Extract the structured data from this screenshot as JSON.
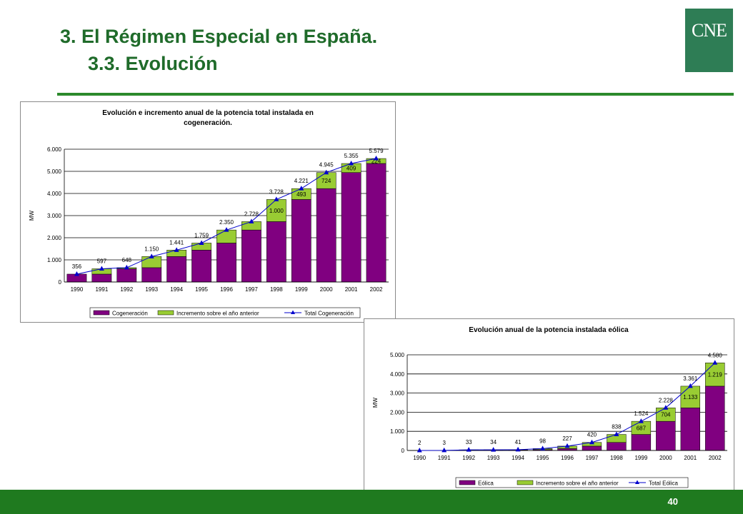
{
  "header": {
    "title": "3. El Régimen Especial en España.",
    "subtitle": "3.3. Evolución",
    "logo_text": "CNE"
  },
  "footer": {
    "page_number": "40"
  },
  "colors": {
    "accent": "#1f7a1f",
    "base_series": "#800080",
    "increment_series": "#99cc33",
    "total_line": "#0000cc"
  },
  "chart_data": [
    {
      "type": "bar",
      "stacked": true,
      "title": "Evolución e incremento anual de la potencia total instalada en cogeneración.",
      "ylabel": "MW",
      "ylim": [
        0,
        6000
      ],
      "yticks": [
        "0",
        "1.000",
        "2.000",
        "3.000",
        "4.000",
        "5.000",
        "6.000"
      ],
      "grid": true,
      "legend_position": "bottom",
      "categories": [
        "1990",
        "1991",
        "1992",
        "1993",
        "1994",
        "1995",
        "1996",
        "1997",
        "1998",
        "1999",
        "2000",
        "2001",
        "2002"
      ],
      "series": [
        {
          "name": "Cogeneración",
          "type": "bar",
          "values": [
            356,
            356,
            597,
            648,
            1150,
            1441,
            1759,
            2350,
            2728,
            3728,
            4221,
            4945,
            5355
          ]
        },
        {
          "name": "Incremento sobre el año anterior",
          "type": "bar",
          "values": [
            0,
            241,
            51,
            502,
            291,
            318,
            591,
            378,
            1000,
            493,
            724,
            409,
            224
          ],
          "labels": [
            "",
            "",
            "",
            "",
            "",
            "",
            "",
            "",
            "1.000",
            "493",
            "724",
            "409",
            "224"
          ]
        },
        {
          "name": "Total Cogeneración",
          "type": "line",
          "values": [
            356,
            597,
            648,
            1150,
            1441,
            1759,
            2350,
            2728,
            3728,
            4221,
            4945,
            5355,
            5579
          ],
          "labels": [
            "356",
            "597",
            "648",
            "1.150",
            "1.441",
            "1.759",
            "2.350",
            "2.728",
            "3.728",
            "4.221",
            "4.945",
            "5.355",
            "5.579"
          ]
        }
      ]
    },
    {
      "type": "bar",
      "stacked": true,
      "title": "Evolución anual de la potencia instalada eólica",
      "ylabel": "MW",
      "ylim": [
        0,
        5000
      ],
      "yticks": [
        "0",
        "1.000",
        "2.000",
        "3.000",
        "4.000",
        "5.000"
      ],
      "grid": true,
      "legend_position": "bottom",
      "categories": [
        "1990",
        "1991",
        "1992",
        "1993",
        "1994",
        "1995",
        "1996",
        "1997",
        "1998",
        "1999",
        "2000",
        "2001",
        "2002"
      ],
      "series": [
        {
          "name": "Eólica",
          "type": "bar",
          "values": [
            2,
            2,
            3,
            33,
            34,
            41,
            98,
            227,
            420,
            838,
            1524,
            2228,
            3361
          ]
        },
        {
          "name": "Incremento sobre el año anterior",
          "type": "bar",
          "values": [
            0,
            1,
            30,
            1,
            7,
            57,
            129,
            193,
            418,
            687,
            704,
            1133,
            1219
          ],
          "labels": [
            "",
            "",
            "",
            "",
            "",
            "",
            "",
            "",
            "",
            "687",
            "704",
            "1.133",
            "1.219"
          ]
        },
        {
          "name": "Total Eólica",
          "type": "line",
          "values": [
            2,
            3,
            33,
            34,
            41,
            98,
            227,
            420,
            838,
            1524,
            2228,
            3361,
            4580
          ],
          "labels": [
            "2",
            "3",
            "33",
            "34",
            "41",
            "98",
            "227",
            "420",
            "838",
            "1.524",
            "2.228",
            "3.361",
            "4.580"
          ]
        }
      ]
    }
  ]
}
